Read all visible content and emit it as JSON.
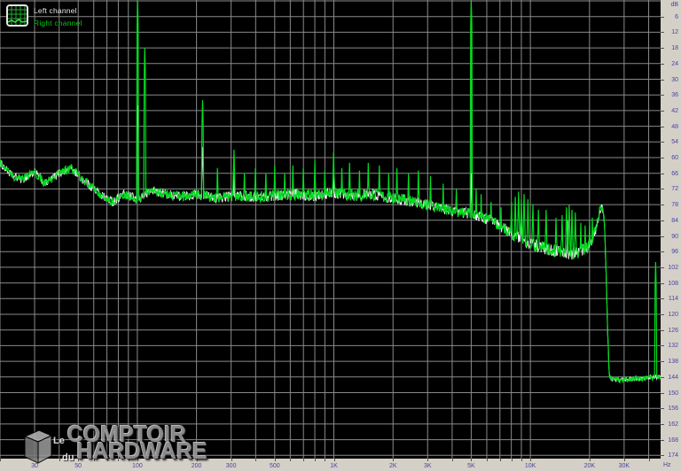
{
  "legend": {
    "left": "Left channel",
    "right": "Right channel",
    "position": "top-left"
  },
  "icons": {
    "app_icon": "grid-spectrum-icon",
    "watermark_icon": "3d-box-icon"
  },
  "colors": {
    "background": "#000000",
    "grid": "#8a8a8a",
    "left_channel": "#ededed",
    "right_channel": "#00dc1e",
    "axis_strip": "#d4d0c8",
    "axis_text": "#46469e",
    "legend_left_text": "#e8e8e8",
    "legend_right_text": "#00c414"
  },
  "y_axis": {
    "unit": "dB",
    "labels": [
      "6",
      "12",
      "18",
      "24",
      "30",
      "36",
      "42",
      "48",
      "54",
      "60",
      "66",
      "72",
      "78",
      "84",
      "90",
      "96",
      "102",
      "108",
      "114",
      "120",
      "126",
      "132",
      "138",
      "144",
      "150",
      "156",
      "162",
      "168",
      "174"
    ],
    "step_db": 6
  },
  "x_axis": {
    "unit": "Hz",
    "labels": [
      {
        "f": 30,
        "t": "30"
      },
      {
        "f": 50,
        "t": "50"
      },
      {
        "f": 100,
        "t": "100"
      },
      {
        "f": 200,
        "t": "200"
      },
      {
        "f": 300,
        "t": "300"
      },
      {
        "f": 500,
        "t": "500"
      },
      {
        "f": 1000,
        "t": "1K"
      },
      {
        "f": 2000,
        "t": "2K"
      },
      {
        "f": 3000,
        "t": "3K"
      },
      {
        "f": 5000,
        "t": "5K"
      },
      {
        "f": 10000,
        "t": "10K"
      },
      {
        "f": 20000,
        "t": "20K"
      },
      {
        "f": 30000,
        "t": "30K"
      }
    ]
  },
  "watermark": {
    "line1_small": "Le",
    "line1_big": "COMPTOIR",
    "line2_small": "du",
    "line2_big": "HARDWARE"
  },
  "chart_data": {
    "type": "line",
    "title": "",
    "x_unit": "Hz",
    "y_unit": "dB",
    "x_scale": "log",
    "x_range": [
      20,
      46000
    ],
    "y_range": [
      0,
      -174
    ],
    "grid": true,
    "legend_position": "top-left",
    "series": [
      {
        "name": "Left channel",
        "color": "#ededed",
        "baseline_points": [
          [
            20,
            -62
          ],
          [
            23,
            -67
          ],
          [
            26,
            -68.5
          ],
          [
            30,
            -65.5
          ],
          [
            34,
            -70
          ],
          [
            40,
            -66
          ],
          [
            46,
            -64
          ],
          [
            52,
            -68
          ],
          [
            58,
            -71
          ],
          [
            66,
            -74.5
          ],
          [
            75,
            -77
          ],
          [
            85,
            -74
          ],
          [
            100,
            -76
          ],
          [
            120,
            -72.5
          ],
          [
            140,
            -74
          ],
          [
            170,
            -75
          ],
          [
            200,
            -74
          ],
          [
            260,
            -75.5
          ],
          [
            320,
            -74.5
          ],
          [
            400,
            -75
          ],
          [
            500,
            -74.5
          ],
          [
            650,
            -74
          ],
          [
            800,
            -74.5
          ],
          [
            1000,
            -73.5
          ],
          [
            1300,
            -74.5
          ],
          [
            1600,
            -74
          ],
          [
            2000,
            -75.5
          ],
          [
            2600,
            -77
          ],
          [
            3200,
            -78.5
          ],
          [
            4000,
            -80.5
          ],
          [
            5000,
            -81.5
          ],
          [
            6000,
            -83.5
          ],
          [
            7000,
            -86
          ],
          [
            8000,
            -89
          ],
          [
            9000,
            -91
          ],
          [
            10000,
            -93
          ],
          [
            12000,
            -95
          ],
          [
            14000,
            -96
          ],
          [
            16000,
            -97
          ],
          [
            18000,
            -96
          ],
          [
            20000,
            -93.5
          ],
          [
            21500,
            -88
          ],
          [
            22600,
            -80
          ],
          [
            23200,
            -78
          ],
          [
            23800,
            -84
          ],
          [
            24200,
            -100
          ],
          [
            24700,
            -125
          ],
          [
            25200,
            -143
          ],
          [
            26000,
            -145
          ],
          [
            30000,
            -145
          ],
          [
            38000,
            -144.5
          ],
          [
            46000,
            -144
          ]
        ],
        "spikes": [
          [
            100,
            -40
          ],
          [
            215,
            -56
          ],
          [
            310,
            -66
          ],
          [
            1000,
            -67
          ],
          [
            5000,
            -66
          ],
          [
            9000,
            -80
          ],
          [
            15500,
            -84
          ]
        ],
        "noise_db": [
          [
            20,
            1.5
          ],
          [
            100,
            1.8
          ],
          [
            1000,
            2.2
          ],
          [
            5000,
            2.0
          ],
          [
            10000,
            2.4
          ],
          [
            20000,
            2.4
          ],
          [
            23000,
            1.8
          ],
          [
            25500,
            0.8
          ],
          [
            46000,
            0.8
          ]
        ]
      },
      {
        "name": "Right channel",
        "color": "#00dc1e",
        "baseline_points": [
          [
            20,
            -62
          ],
          [
            23,
            -67
          ],
          [
            26,
            -68.5
          ],
          [
            30,
            -65.5
          ],
          [
            34,
            -70
          ],
          [
            40,
            -66
          ],
          [
            46,
            -64
          ],
          [
            52,
            -68
          ],
          [
            58,
            -71
          ],
          [
            66,
            -74.5
          ],
          [
            75,
            -77
          ],
          [
            85,
            -74
          ],
          [
            100,
            -76
          ],
          [
            120,
            -72.5
          ],
          [
            140,
            -74
          ],
          [
            170,
            -75
          ],
          [
            200,
            -74
          ],
          [
            260,
            -75.5
          ],
          [
            320,
            -74.5
          ],
          [
            400,
            -75
          ],
          [
            500,
            -74.5
          ],
          [
            650,
            -74
          ],
          [
            800,
            -74.5
          ],
          [
            1000,
            -73.5
          ],
          [
            1300,
            -74.5
          ],
          [
            1600,
            -74
          ],
          [
            2000,
            -75.5
          ],
          [
            2600,
            -77
          ],
          [
            3200,
            -78.5
          ],
          [
            4000,
            -80.5
          ],
          [
            5000,
            -81.5
          ],
          [
            6000,
            -83.5
          ],
          [
            7000,
            -86
          ],
          [
            8000,
            -89
          ],
          [
            9000,
            -91
          ],
          [
            10000,
            -93
          ],
          [
            12000,
            -95
          ],
          [
            14000,
            -96
          ],
          [
            16000,
            -97
          ],
          [
            18000,
            -96
          ],
          [
            20000,
            -93.5
          ],
          [
            21500,
            -88
          ],
          [
            22600,
            -80
          ],
          [
            23200,
            -78
          ],
          [
            23800,
            -84
          ],
          [
            24200,
            -100
          ],
          [
            24700,
            -125
          ],
          [
            25200,
            -143
          ],
          [
            26000,
            -145
          ],
          [
            30000,
            -145
          ],
          [
            38000,
            -144.5
          ],
          [
            46000,
            -144
          ]
        ],
        "spikes": [
          [
            100,
            0
          ],
          [
            109,
            -18
          ],
          [
            215,
            -38
          ],
          [
            255,
            -64
          ],
          [
            310,
            -57
          ],
          [
            350,
            -66
          ],
          [
            400,
            -64
          ],
          [
            450,
            -66
          ],
          [
            500,
            -63
          ],
          [
            560,
            -66
          ],
          [
            620,
            -63
          ],
          [
            700,
            -64
          ],
          [
            800,
            -61
          ],
          [
            900,
            -65
          ],
          [
            1000,
            -58
          ],
          [
            1100,
            -64
          ],
          [
            1200,
            -62
          ],
          [
            1350,
            -65
          ],
          [
            1500,
            -62
          ],
          [
            1700,
            -63
          ],
          [
            1900,
            -66
          ],
          [
            2100,
            -64
          ],
          [
            2400,
            -66
          ],
          [
            2700,
            -65
          ],
          [
            3100,
            -67
          ],
          [
            3600,
            -70
          ],
          [
            4200,
            -72
          ],
          [
            5000,
            0
          ],
          [
            5300,
            -72
          ],
          [
            5600,
            -74
          ],
          [
            6300,
            -77
          ],
          [
            7100,
            -79
          ],
          [
            8000,
            -77
          ],
          [
            8400,
            -75
          ],
          [
            8700,
            -73
          ],
          [
            9000,
            -76
          ],
          [
            9300,
            -74
          ],
          [
            9700,
            -76
          ],
          [
            10300,
            -78
          ],
          [
            11000,
            -80
          ],
          [
            12000,
            -80
          ],
          [
            13500,
            -83
          ],
          [
            14500,
            -82
          ],
          [
            15300,
            -79
          ],
          [
            15800,
            -78
          ],
          [
            16300,
            -80
          ],
          [
            16900,
            -81
          ],
          [
            18000,
            -85
          ],
          [
            19000,
            -86
          ],
          [
            20000,
            -84
          ],
          [
            20700,
            -83
          ],
          [
            43500,
            -100
          ]
        ],
        "noise_db": [
          [
            20,
            1.5
          ],
          [
            100,
            1.8
          ],
          [
            1000,
            2.4
          ],
          [
            5000,
            2.0
          ],
          [
            10000,
            2.6
          ],
          [
            20000,
            2.6
          ],
          [
            23000,
            1.8
          ],
          [
            25500,
            0.9
          ],
          [
            46000,
            0.9
          ]
        ]
      }
    ]
  }
}
